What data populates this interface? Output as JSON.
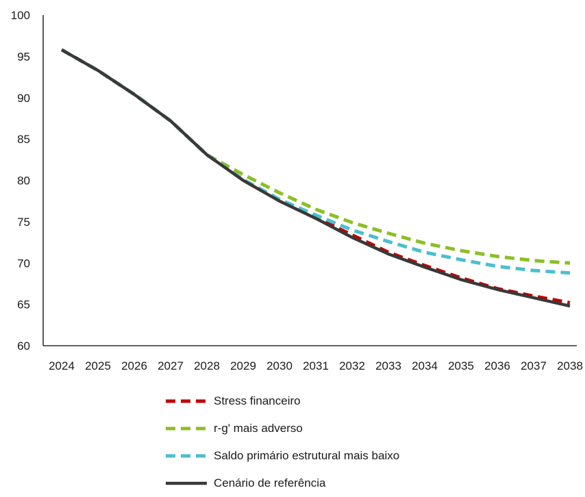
{
  "chart_data": {
    "type": "line",
    "title": "",
    "xlabel": "",
    "ylabel": "",
    "x": [
      "2024",
      "2025",
      "2026",
      "2027",
      "2028",
      "2029",
      "2030",
      "2031",
      "2032",
      "2033",
      "2034",
      "2035",
      "2036",
      "2037",
      "2038"
    ],
    "ylim": [
      60,
      100
    ],
    "yticks": [
      60,
      65,
      70,
      75,
      80,
      85,
      90,
      95,
      100
    ],
    "grid": false,
    "legend_position": "bottom",
    "series": [
      {
        "name": "Stress financeiro",
        "color": "#c00000",
        "dash": true,
        "values": [
          95.8,
          93.3,
          90.4,
          87.2,
          83.1,
          80.1,
          77.6,
          75.5,
          73.4,
          71.3,
          69.7,
          68.2,
          66.9,
          66.0,
          65.2
        ]
      },
      {
        "name": "r-g' mais adverso",
        "color": "#8cbf26",
        "dash": true,
        "values": [
          95.8,
          93.3,
          90.4,
          87.2,
          83.1,
          80.7,
          78.5,
          76.5,
          74.9,
          73.6,
          72.4,
          71.5,
          70.8,
          70.3,
          70.0
        ]
      },
      {
        "name": "Saldo primário estrutural mais baixo",
        "color": "#4bbfcf",
        "dash": true,
        "values": [
          95.8,
          93.3,
          90.4,
          87.2,
          83.1,
          80.1,
          77.7,
          75.8,
          74.0,
          72.6,
          71.3,
          70.4,
          69.6,
          69.1,
          68.8
        ]
      },
      {
        "name": "Cenário de referência",
        "color": "#3b3838",
        "dash": false,
        "values": [
          95.8,
          93.3,
          90.4,
          87.2,
          83.1,
          80.0,
          77.5,
          75.4,
          73.1,
          71.1,
          69.5,
          68.0,
          66.8,
          65.8,
          64.8
        ]
      }
    ]
  }
}
